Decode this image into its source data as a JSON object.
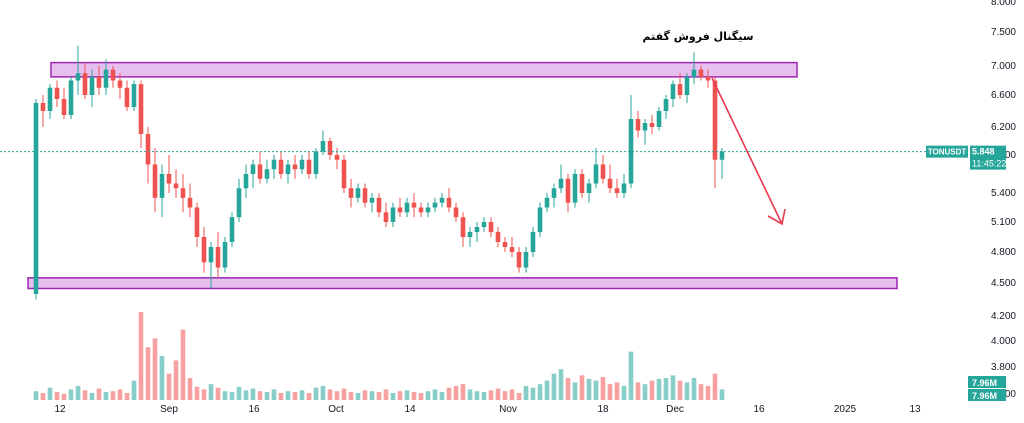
{
  "chart_data": {
    "type": "candlestick",
    "symbol": "TONUSDT",
    "last_price": "5.848",
    "countdown": "11:45:22",
    "volume_labels": [
      "7.96M",
      "7.96M"
    ],
    "annotation": "سیگنال فروش گفتم",
    "y_ticks": [
      "8.000",
      "7.500",
      "7.000",
      "6.600",
      "6.200",
      "5.800",
      "5.400",
      "5.100",
      "4.800",
      "4.500",
      "4.200",
      "4.000",
      "3.800",
      "3.600"
    ],
    "x_ticks": [
      "12",
      "Sep",
      "16",
      "Oct",
      "14",
      "Nov",
      "18",
      "Dec",
      "16",
      "2025",
      "13"
    ],
    "zones": [
      {
        "name": "resistance",
        "low": 6.85,
        "high": 7.05
      },
      {
        "name": "support",
        "low": 4.45,
        "high": 4.55
      }
    ],
    "colors": {
      "up": "#26a69a",
      "down": "#ef5350",
      "zone_fill": "#e6bfef",
      "zone_border": "#9c27b0",
      "arrow": "#e53950",
      "price_line": "#26a69a"
    },
    "candles": [
      [
        4.4,
        6.55,
        4.35,
        6.5
      ],
      [
        6.5,
        6.6,
        6.2,
        6.4
      ],
      [
        6.4,
        6.75,
        6.3,
        6.7
      ],
      [
        6.7,
        6.8,
        6.45,
        6.55
      ],
      [
        6.55,
        6.7,
        6.3,
        6.35
      ],
      [
        6.35,
        6.85,
        6.3,
        6.8
      ],
      [
        6.8,
        7.3,
        6.6,
        6.9
      ],
      [
        6.9,
        7.05,
        6.55,
        6.6
      ],
      [
        6.6,
        6.95,
        6.45,
        6.85
      ],
      [
        6.85,
        7.0,
        6.6,
        6.7
      ],
      [
        6.7,
        7.1,
        6.6,
        6.95
      ],
      [
        6.95,
        7.0,
        6.7,
        6.8
      ],
      [
        6.8,
        6.9,
        6.55,
        6.7
      ],
      [
        6.7,
        6.8,
        6.4,
        6.45
      ],
      [
        6.45,
        6.8,
        6.4,
        6.75
      ],
      [
        6.75,
        6.8,
        5.9,
        6.1
      ],
      [
        6.1,
        6.2,
        5.5,
        5.7
      ],
      [
        5.7,
        5.9,
        5.2,
        5.35
      ],
      [
        5.35,
        5.7,
        5.15,
        5.6
      ],
      [
        5.6,
        5.8,
        5.4,
        5.5
      ],
      [
        5.5,
        5.65,
        5.35,
        5.45
      ],
      [
        5.45,
        5.6,
        5.2,
        5.35
      ],
      [
        5.35,
        5.5,
        5.15,
        5.25
      ],
      [
        5.25,
        5.3,
        4.85,
        4.95
      ],
      [
        4.95,
        5.05,
        4.6,
        4.7
      ],
      [
        4.7,
        4.9,
        4.45,
        4.85
      ],
      [
        4.85,
        5.0,
        4.55,
        4.65
      ],
      [
        4.65,
        4.95,
        4.6,
        4.9
      ],
      [
        4.9,
        5.2,
        4.85,
        5.15
      ],
      [
        5.15,
        5.55,
        5.1,
        5.45
      ],
      [
        5.45,
        5.7,
        5.35,
        5.6
      ],
      [
        5.6,
        5.75,
        5.45,
        5.7
      ],
      [
        5.7,
        5.85,
        5.5,
        5.55
      ],
      [
        5.55,
        5.75,
        5.5,
        5.65
      ],
      [
        5.65,
        5.8,
        5.55,
        5.75
      ],
      [
        5.75,
        5.85,
        5.55,
        5.6
      ],
      [
        5.6,
        5.75,
        5.5,
        5.7
      ],
      [
        5.7,
        5.8,
        5.55,
        5.65
      ],
      [
        5.65,
        5.8,
        5.6,
        5.75
      ],
      [
        5.75,
        5.85,
        5.55,
        5.6
      ],
      [
        5.6,
        5.9,
        5.55,
        5.85
      ],
      [
        5.85,
        6.15,
        5.8,
        6.0
      ],
      [
        6.0,
        6.05,
        5.75,
        5.8
      ],
      [
        5.8,
        5.9,
        5.65,
        5.75
      ],
      [
        5.75,
        5.8,
        5.4,
        5.45
      ],
      [
        5.45,
        5.55,
        5.25,
        5.35
      ],
      [
        5.35,
        5.5,
        5.3,
        5.45
      ],
      [
        5.45,
        5.5,
        5.25,
        5.3
      ],
      [
        5.3,
        5.4,
        5.2,
        5.35
      ],
      [
        5.35,
        5.4,
        5.15,
        5.2
      ],
      [
        5.2,
        5.3,
        5.05,
        5.1
      ],
      [
        5.1,
        5.3,
        5.05,
        5.25
      ],
      [
        5.25,
        5.35,
        5.15,
        5.2
      ],
      [
        5.2,
        5.35,
        5.15,
        5.3
      ],
      [
        5.3,
        5.4,
        5.15,
        5.25
      ],
      [
        5.25,
        5.3,
        5.15,
        5.2
      ],
      [
        5.2,
        5.3,
        5.15,
        5.25
      ],
      [
        5.25,
        5.35,
        5.2,
        5.3
      ],
      [
        5.3,
        5.4,
        5.25,
        5.35
      ],
      [
        5.35,
        5.45,
        5.2,
        5.25
      ],
      [
        5.25,
        5.3,
        5.1,
        5.15
      ],
      [
        5.15,
        5.2,
        4.85,
        4.95
      ],
      [
        4.95,
        5.05,
        4.85,
        5.0
      ],
      [
        5.0,
        5.1,
        4.9,
        5.05
      ],
      [
        5.05,
        5.15,
        5.0,
        5.1
      ],
      [
        5.1,
        5.15,
        4.95,
        5.0
      ],
      [
        5.0,
        5.05,
        4.85,
        4.9
      ],
      [
        4.9,
        4.95,
        4.8,
        4.85
      ],
      [
        4.85,
        4.95,
        4.75,
        4.8
      ],
      [
        4.8,
        4.85,
        4.6,
        4.65
      ],
      [
        4.65,
        4.85,
        4.6,
        4.8
      ],
      [
        4.8,
        5.05,
        4.75,
        5.0
      ],
      [
        5.0,
        5.3,
        4.95,
        5.25
      ],
      [
        5.25,
        5.4,
        5.2,
        5.35
      ],
      [
        5.35,
        5.5,
        5.25,
        5.45
      ],
      [
        5.45,
        5.7,
        5.4,
        5.55
      ],
      [
        5.55,
        5.6,
        5.2,
        5.3
      ],
      [
        5.3,
        5.65,
        5.25,
        5.6
      ],
      [
        5.6,
        5.65,
        5.35,
        5.4
      ],
      [
        5.4,
        5.55,
        5.3,
        5.5
      ],
      [
        5.5,
        5.9,
        5.45,
        5.7
      ],
      [
        5.7,
        5.8,
        5.5,
        5.55
      ],
      [
        5.55,
        5.7,
        5.4,
        5.45
      ],
      [
        5.45,
        5.55,
        5.35,
        5.4
      ],
      [
        5.4,
        5.6,
        5.35,
        5.5
      ],
      [
        5.5,
        6.6,
        5.45,
        6.3
      ],
      [
        6.3,
        6.4,
        6.05,
        6.15
      ],
      [
        6.15,
        6.3,
        5.95,
        6.25
      ],
      [
        6.25,
        6.35,
        6.1,
        6.2
      ],
      [
        6.2,
        6.45,
        6.15,
        6.4
      ],
      [
        6.4,
        6.6,
        6.3,
        6.55
      ],
      [
        6.55,
        6.8,
        6.45,
        6.75
      ],
      [
        6.75,
        6.9,
        6.55,
        6.6
      ],
      [
        6.6,
        6.9,
        6.5,
        6.85
      ],
      [
        6.85,
        7.2,
        6.75,
        6.95
      ],
      [
        6.95,
        7.0,
        6.8,
        6.85
      ],
      [
        6.85,
        6.95,
        6.7,
        6.8
      ],
      [
        6.8,
        6.85,
        5.45,
        5.75
      ],
      [
        5.75,
        5.9,
        5.55,
        5.85
      ]
    ],
    "volumes": [
      10,
      8,
      14,
      9,
      7,
      12,
      16,
      11,
      8,
      13,
      9,
      10,
      12,
      8,
      22,
      100,
      60,
      70,
      50,
      30,
      45,
      80,
      25,
      15,
      12,
      18,
      14,
      10,
      9,
      15,
      11,
      13,
      10,
      9,
      12,
      8,
      10,
      9,
      11,
      8,
      14,
      16,
      12,
      10,
      13,
      9,
      8,
      11,
      10,
      9,
      12,
      8,
      10,
      11,
      9,
      8,
      10,
      12,
      9,
      14,
      16,
      18,
      12,
      10,
      9,
      11,
      13,
      10,
      12,
      8,
      16,
      14,
      18,
      22,
      30,
      35,
      25,
      20,
      28,
      24,
      22,
      26,
      18,
      20,
      16,
      55,
      20,
      18,
      22,
      24,
      25,
      28,
      22,
      20,
      25,
      18,
      16,
      30,
      12
    ]
  }
}
